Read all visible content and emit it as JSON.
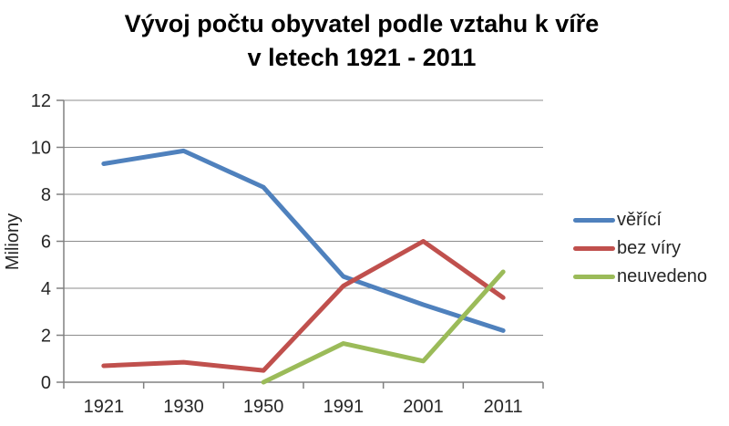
{
  "title": {
    "line1": "Vývoj počtu obyvatel podle vztahu k víře",
    "line2": "v letech 1921 - 2011"
  },
  "colors": {
    "series_blue": "#4F81BD",
    "series_red": "#C0504D",
    "series_green": "#9BBB59",
    "grid": "#8C8C8C",
    "axis": "#808080",
    "tick_text": "#262626",
    "title_text": "#000000",
    "background": "#FFFFFF"
  },
  "chart_data": {
    "type": "line",
    "title": "Vývoj počtu obyvatel podle vztahu k víře v letech 1921 - 2011",
    "categories": [
      "1921",
      "1930",
      "1950",
      "1991",
      "2001",
      "2011"
    ],
    "series": [
      {
        "name": "věřící",
        "color": "#4F81BD",
        "values": [
          9.3,
          9.85,
          8.3,
          4.5,
          3.3,
          2.2
        ]
      },
      {
        "name": "bez víry",
        "color": "#C0504D",
        "values": [
          0.7,
          0.85,
          0.5,
          4.1,
          6.0,
          3.6
        ]
      },
      {
        "name": "neuvedeno",
        "color": "#9BBB59",
        "values": [
          null,
          null,
          0.0,
          1.65,
          0.9,
          4.7
        ]
      }
    ],
    "xlabel": "",
    "ylabel": "Miliony",
    "ylim": [
      0,
      12
    ],
    "y_ticks": [
      0,
      2,
      4,
      6,
      8,
      10,
      12
    ],
    "grid": true,
    "legend_position": "right"
  }
}
